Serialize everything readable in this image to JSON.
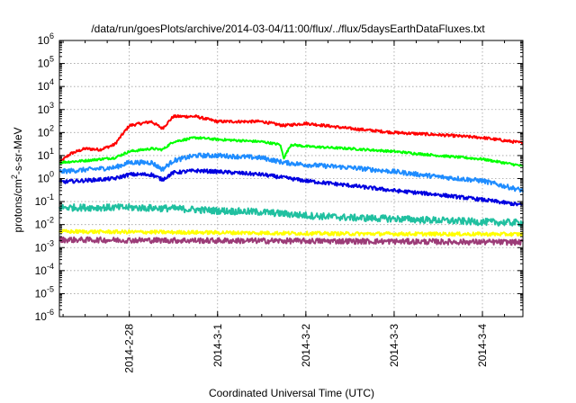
{
  "chart_data": {
    "type": "line",
    "title": "/data/run/goesPlots/archive/2014-03-04/11:00/flux/../flux/5daysEarthDataFluxes.txt",
    "xlabel": "Coordinated Universal Time (UTC)",
    "ylabel": {
      "pre": "protons/cm",
      "sup": "2",
      "post": "-s-sr-MeV"
    },
    "yscale": "log",
    "ylim": [
      1e-06,
      1000000.0
    ],
    "y_ticks": [
      {
        "exp": "-6",
        "value": 1e-06
      },
      {
        "exp": "-5",
        "value": 1e-05
      },
      {
        "exp": "-4",
        "value": 0.0001
      },
      {
        "exp": "-3",
        "value": 0.001
      },
      {
        "exp": "-2",
        "value": 0.01
      },
      {
        "exp": "-1",
        "value": 0.1
      },
      {
        "exp": "0",
        "value": 1
      },
      {
        "exp": "1",
        "value": 10
      },
      {
        "exp": "2",
        "value": 100
      },
      {
        "exp": "3",
        "value": 1000
      },
      {
        "exp": "4",
        "value": 10000
      },
      {
        "exp": "5",
        "value": 100000
      },
      {
        "exp": "6",
        "value": 1000000
      }
    ],
    "y_tick_base": "10",
    "xlim": [
      "2014-02-27T05:00",
      "2014-03-04T11:00"
    ],
    "x_ticks": [
      {
        "label": "2014-2-28",
        "value": "2014-02-28T00:00"
      },
      {
        "label": "2014-3-1",
        "value": "2014-03-01T00:00"
      },
      {
        "label": "2014-3-2",
        "value": "2014-03-02T00:00"
      },
      {
        "label": "2014-3-3",
        "value": "2014-03-03T00:00"
      },
      {
        "label": "2014-3-4",
        "value": "2014-03-04T00:00"
      }
    ],
    "grid": true,
    "legend": false,
    "series": [
      {
        "color": "#ff0000",
        "noise": 0.06,
        "points": [
          [
            "2014-02-27T05:00",
            5
          ],
          [
            "2014-02-27T08:00",
            12
          ],
          [
            "2014-02-27T12:00",
            20
          ],
          [
            "2014-02-27T16:00",
            18
          ],
          [
            "2014-02-27T20:00",
            30
          ],
          [
            "2014-02-28T00:00",
            200
          ],
          [
            "2014-02-28T06:00",
            300
          ],
          [
            "2014-02-28T09:00",
            150
          ],
          [
            "2014-02-28T12:00",
            500
          ],
          [
            "2014-02-28T18:00",
            500
          ],
          [
            "2014-03-01T00:00",
            300
          ],
          [
            "2014-03-01T12:00",
            300
          ],
          [
            "2014-03-01T18:00",
            200
          ],
          [
            "2014-03-02T00:00",
            250
          ],
          [
            "2014-03-02T12:00",
            150
          ],
          [
            "2014-03-03T00:00",
            100
          ],
          [
            "2014-03-03T12:00",
            80
          ],
          [
            "2014-03-04T00:00",
            60
          ],
          [
            "2014-03-04T11:00",
            35
          ]
        ]
      },
      {
        "color": "#00ff00",
        "noise": 0.05,
        "points": [
          [
            "2014-02-27T05:00",
            5
          ],
          [
            "2014-02-27T12:00",
            6
          ],
          [
            "2014-02-27T20:00",
            8
          ],
          [
            "2014-02-28T00:00",
            15
          ],
          [
            "2014-02-28T06:00",
            20
          ],
          [
            "2014-02-28T09:00",
            18
          ],
          [
            "2014-02-28T12:00",
            40
          ],
          [
            "2014-02-28T18:00",
            60
          ],
          [
            "2014-03-01T00:00",
            50
          ],
          [
            "2014-03-01T12:00",
            40
          ],
          [
            "2014-03-01T17:00",
            30
          ],
          [
            "2014-03-01T18:00",
            8
          ],
          [
            "2014-03-01T20:00",
            30
          ],
          [
            "2014-03-02T00:00",
            25
          ],
          [
            "2014-03-02T12:00",
            20
          ],
          [
            "2014-03-03T00:00",
            15
          ],
          [
            "2014-03-03T12:00",
            10
          ],
          [
            "2014-03-04T00:00",
            7
          ],
          [
            "2014-03-04T11:00",
            3.5
          ]
        ]
      },
      {
        "color": "#1e8cff",
        "noise": 0.1,
        "points": [
          [
            "2014-02-27T05:00",
            2
          ],
          [
            "2014-02-27T20:00",
            3
          ],
          [
            "2014-02-28T00:00",
            5
          ],
          [
            "2014-02-28T06:00",
            5
          ],
          [
            "2014-02-28T09:00",
            2.5
          ],
          [
            "2014-02-28T12:00",
            6
          ],
          [
            "2014-02-28T18:00",
            10
          ],
          [
            "2014-03-01T00:00",
            10
          ],
          [
            "2014-03-01T12:00",
            8
          ],
          [
            "2014-03-01T18:00",
            5
          ],
          [
            "2014-03-02T00:00",
            4
          ],
          [
            "2014-03-02T12:00",
            3
          ],
          [
            "2014-03-03T00:00",
            2
          ],
          [
            "2014-03-03T12:00",
            1.2
          ],
          [
            "2014-03-04T00:00",
            0.8
          ],
          [
            "2014-03-04T11:00",
            0.3
          ]
        ]
      },
      {
        "color": "#0000e0",
        "noise": 0.08,
        "points": [
          [
            "2014-02-27T05:00",
            0.7
          ],
          [
            "2014-02-27T20:00",
            1
          ],
          [
            "2014-02-28T00:00",
            1.5
          ],
          [
            "2014-02-28T06:00",
            1.5
          ],
          [
            "2014-02-28T09:00",
            0.9
          ],
          [
            "2014-02-28T12:00",
            1.8
          ],
          [
            "2014-02-28T18:00",
            2.2
          ],
          [
            "2014-03-01T00:00",
            2
          ],
          [
            "2014-03-01T12:00",
            1.5
          ],
          [
            "2014-03-02T00:00",
            0.8
          ],
          [
            "2014-03-02T12:00",
            0.5
          ],
          [
            "2014-03-03T00:00",
            0.3
          ],
          [
            "2014-03-03T12:00",
            0.2
          ],
          [
            "2014-03-04T00:00",
            0.12
          ],
          [
            "2014-03-04T11:00",
            0.07
          ]
        ]
      },
      {
        "color": "#20c0a0",
        "noise": 0.15,
        "points": [
          [
            "2014-02-27T05:00",
            0.055
          ],
          [
            "2014-02-28T00:00",
            0.055
          ],
          [
            "2014-02-28T12:00",
            0.05
          ],
          [
            "2014-03-01T00:00",
            0.04
          ],
          [
            "2014-03-01T12:00",
            0.035
          ],
          [
            "2014-03-02T00:00",
            0.025
          ],
          [
            "2014-03-02T12:00",
            0.02
          ],
          [
            "2014-03-03T00:00",
            0.018
          ],
          [
            "2014-03-04T00:00",
            0.013
          ],
          [
            "2014-03-04T11:00",
            0.012
          ]
        ]
      },
      {
        "color": "#ffff00",
        "noise": 0.08,
        "points": [
          [
            "2014-02-27T05:00",
            0.005
          ],
          [
            "2014-03-01T00:00",
            0.0045
          ],
          [
            "2014-03-02T12:00",
            0.004
          ],
          [
            "2014-03-04T11:00",
            0.0038
          ]
        ]
      },
      {
        "color": "#9c3c78",
        "noise": 0.12,
        "points": [
          [
            "2014-02-27T05:00",
            0.0022
          ],
          [
            "2014-03-01T00:00",
            0.002
          ],
          [
            "2014-03-02T12:00",
            0.0019
          ],
          [
            "2014-03-04T11:00",
            0.0017
          ]
        ]
      }
    ]
  }
}
